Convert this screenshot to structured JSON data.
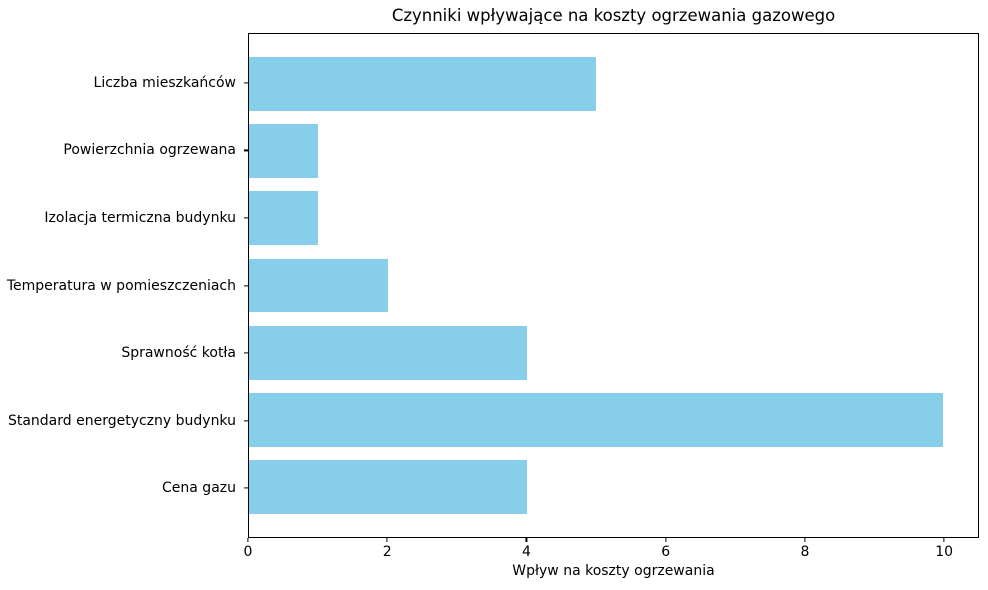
{
  "chart_data": {
    "type": "bar",
    "orientation": "horizontal",
    "title": "Czynniki wpływające na koszty ogrzewania gazowego",
    "xlabel": "Wpływ na koszty ogrzewania",
    "ylabel": "",
    "categories": [
      "Liczba mieszkańców",
      "Powierzchnia ogrzewana",
      "Izolacja termiczna budynku",
      "Temperatura w pomieszczeniach",
      "Sprawność kotła",
      "Standard energetyczny budynku",
      "Cena gazu"
    ],
    "values": [
      5,
      1,
      1,
      2,
      4,
      10,
      4
    ],
    "xlim": [
      0,
      10.5
    ],
    "xticks": [
      0,
      2,
      4,
      6,
      8,
      10
    ],
    "bar_color": "#87CEEB",
    "background_color": "#ffffff",
    "axis_color": "#000000",
    "grid": false,
    "legend": null
  }
}
